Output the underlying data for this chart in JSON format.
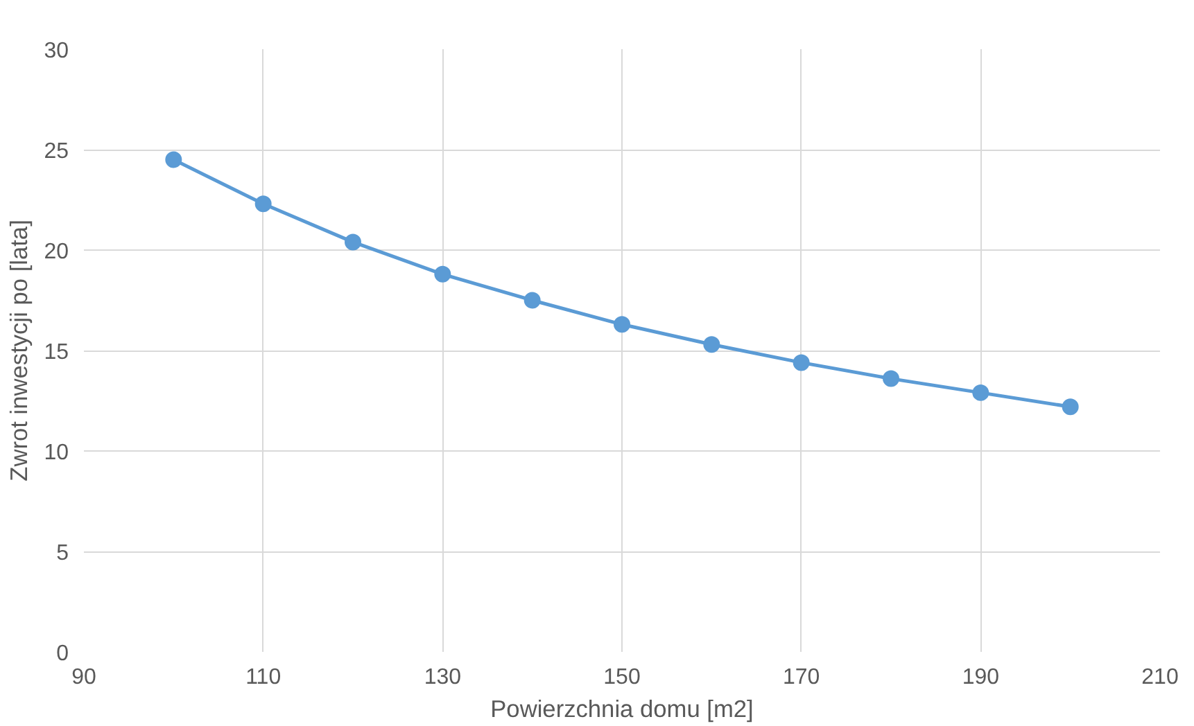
{
  "chart_data": {
    "type": "line",
    "xlabel": "Powierzchnia domu [m2]",
    "ylabel": "Zwrot inwestycji po [lata]",
    "series": [
      {
        "color": "#5b9bd5",
        "x": [
          100,
          110,
          120,
          130,
          140,
          150,
          160,
          170,
          180,
          190,
          200
        ],
        "values": [
          24.5,
          22.3,
          20.4,
          18.8,
          17.5,
          16.3,
          15.3,
          14.4,
          13.6,
          12.9,
          12.2
        ]
      }
    ],
    "xlim": [
      90,
      210
    ],
    "xticks": [
      90,
      110,
      130,
      150,
      170,
      190,
      210
    ],
    "ylim": [
      0,
      30
    ],
    "yticks": [
      0,
      5,
      10,
      15,
      20,
      25,
      30
    ],
    "grid": true,
    "marker": "circle",
    "line_style": "solid"
  }
}
